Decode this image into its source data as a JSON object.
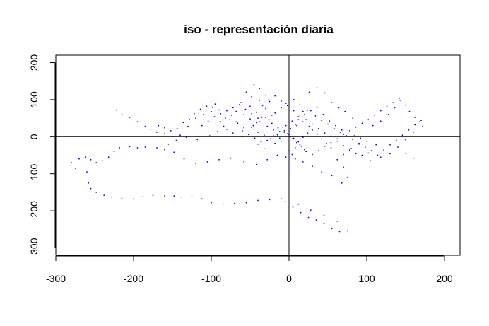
{
  "chart_data": {
    "type": "scatter",
    "title": "iso - representación diaria",
    "xlabel": "",
    "ylabel": "",
    "xlim": [
      -300,
      220
    ],
    "ylim": [
      -320,
      220
    ],
    "x_ticks": [
      -300,
      -200,
      -100,
      0,
      100,
      200
    ],
    "y_ticks": [
      -300,
      -200,
      -100,
      0,
      100,
      200
    ],
    "x_tick_labels": [
      "-300",
      "-200",
      "-100",
      "0",
      "100",
      "200"
    ],
    "y_tick_labels": [
      "-300",
      "-200",
      "-100",
      "0",
      "100",
      "200"
    ],
    "reference_lines": {
      "vertical_x": 0,
      "horizontal_y": 0
    },
    "grid": false,
    "point_color": "#0000ff",
    "series": [
      {
        "values": [
          [
            -280,
            -70
          ],
          [
            -275,
            -85
          ],
          [
            -270,
            -60
          ],
          [
            -262,
            -55
          ],
          [
            -255,
            -62
          ],
          [
            -248,
            -70
          ],
          [
            -240,
            -65
          ],
          [
            -232,
            -55
          ],
          [
            -225,
            -40
          ],
          [
            -218,
            -30
          ],
          [
            -260,
            -95
          ],
          [
            -258,
            -125
          ],
          [
            -255,
            -140
          ],
          [
            -248,
            -150
          ],
          [
            -238,
            -158
          ],
          [
            -228,
            -163
          ],
          [
            -215,
            -166
          ],
          [
            -200,
            -168
          ],
          [
            -188,
            -162
          ],
          [
            -175,
            -158
          ],
          [
            -160,
            -160
          ],
          [
            -148,
            -160
          ],
          [
            -138,
            -163
          ],
          [
            -125,
            -162
          ],
          [
            -112,
            -168
          ],
          [
            -100,
            -178
          ],
          [
            -85,
            -182
          ],
          [
            -70,
            -180
          ],
          [
            -55,
            -178
          ],
          [
            -40,
            -172
          ],
          [
            -25,
            -170
          ],
          [
            -10,
            -168
          ],
          [
            -5,
            -175
          ],
          [
            5,
            -190
          ],
          [
            15,
            -205
          ],
          [
            25,
            -218
          ],
          [
            35,
            -225
          ],
          [
            45,
            -235
          ],
          [
            55,
            -248
          ],
          [
            65,
            -256
          ],
          [
            75,
            -254
          ],
          [
            45,
            -212
          ],
          [
            62,
            -228
          ],
          [
            12,
            -182
          ],
          [
            28,
            -198
          ],
          [
            -205,
            -27
          ],
          [
            -195,
            -30
          ],
          [
            -185,
            -28
          ],
          [
            -170,
            -30
          ],
          [
            -160,
            -35
          ],
          [
            -222,
            72
          ],
          [
            -215,
            60
          ],
          [
            -205,
            52
          ],
          [
            -195,
            40
          ],
          [
            -185,
            28
          ],
          [
            -178,
            20
          ],
          [
            -170,
            12
          ],
          [
            -160,
            8
          ],
          [
            -150,
            0
          ],
          [
            -140,
            4
          ],
          [
            -130,
            28
          ],
          [
            -120,
            50
          ],
          [
            -110,
            60
          ],
          [
            -100,
            68
          ],
          [
            -95,
            88
          ],
          [
            -90,
            72
          ],
          [
            -88,
            40
          ],
          [
            -80,
            20
          ],
          [
            -72,
            10
          ],
          [
            -60,
            0
          ],
          [
            -55,
            120
          ],
          [
            -45,
            140
          ],
          [
            -38,
            130
          ],
          [
            -30,
            112
          ],
          [
            -25,
            95
          ],
          [
            -50,
            82
          ],
          [
            -58,
            60
          ],
          [
            -68,
            40
          ],
          [
            -42,
            38
          ],
          [
            -35,
            52
          ],
          [
            -28,
            28
          ],
          [
            -20,
            18
          ],
          [
            -15,
            5
          ],
          [
            -10,
            -12
          ],
          [
            -5,
            -25
          ],
          [
            0,
            -38
          ],
          [
            4,
            -48
          ],
          [
            8,
            -30
          ],
          [
            14,
            -22
          ],
          [
            20,
            -35
          ],
          [
            -48,
            25
          ],
          [
            -40,
            12
          ],
          [
            -32,
            4
          ],
          [
            -24,
            -6
          ],
          [
            -18,
            -18
          ],
          [
            -12,
            -4
          ],
          [
            -6,
            12
          ],
          [
            2,
            22
          ],
          [
            8,
            32
          ],
          [
            12,
            46
          ],
          [
            20,
            60
          ],
          [
            28,
            70
          ],
          [
            36,
            78
          ],
          [
            44,
            60
          ],
          [
            52,
            42
          ],
          [
            60,
            30
          ],
          [
            68,
            18
          ],
          [
            76,
            8
          ],
          [
            84,
            2
          ],
          [
            92,
            -4
          ],
          [
            26,
            120
          ],
          [
            36,
            132
          ],
          [
            46,
            118
          ],
          [
            55,
            92
          ],
          [
            64,
            78
          ],
          [
            72,
            68
          ],
          [
            82,
            50
          ],
          [
            95,
            40
          ],
          [
            108,
            30
          ],
          [
            118,
            42
          ],
          [
            128,
            60
          ],
          [
            136,
            78
          ],
          [
            143,
            98
          ],
          [
            150,
            85
          ],
          [
            155,
            68
          ],
          [
            162,
            52
          ],
          [
            168,
            40
          ],
          [
            172,
            28
          ],
          [
            160,
            12
          ],
          [
            150,
            -8
          ],
          [
            140,
            -28
          ],
          [
            130,
            -46
          ],
          [
            118,
            -55
          ],
          [
            105,
            -65
          ],
          [
            95,
            -58
          ],
          [
            160,
            -58
          ],
          [
            150,
            -45
          ],
          [
            112,
            -22
          ],
          [
            100,
            -12
          ],
          [
            90,
            -20
          ],
          [
            80,
            -32
          ],
          [
            70,
            -48
          ],
          [
            62,
            -62
          ],
          [
            70,
            -82
          ],
          [
            75,
            -110
          ],
          [
            68,
            -125
          ],
          [
            55,
            -105
          ],
          [
            42,
            -95
          ],
          [
            30,
            -80
          ],
          [
            18,
            -68
          ],
          [
            8,
            -60
          ],
          [
            -4,
            -55
          ],
          [
            -15,
            -50
          ],
          [
            -28,
            -62
          ],
          [
            -42,
            -75
          ],
          [
            -58,
            -68
          ],
          [
            -75,
            -58
          ],
          [
            -90,
            -62
          ],
          [
            -105,
            -68
          ],
          [
            -120,
            -72
          ],
          [
            -135,
            -60
          ],
          [
            -148,
            -42
          ],
          [
            -155,
            -20
          ],
          [
            -145,
            -10
          ],
          [
            -132,
            -2
          ],
          [
            -118,
            -8
          ],
          [
            -102,
            2
          ],
          [
            -92,
            14
          ],
          [
            -84,
            28
          ],
          [
            -76,
            46
          ],
          [
            -68,
            68
          ],
          [
            -62,
            92
          ],
          [
            -48,
            108
          ],
          [
            -38,
            98
          ],
          [
            -30,
            76
          ],
          [
            -22,
            58
          ],
          [
            -14,
            40
          ],
          [
            -8,
            26
          ],
          [
            -2,
            8
          ],
          [
            4,
            -6
          ],
          [
            10,
            -16
          ],
          [
            16,
            -26
          ],
          [
            22,
            -40
          ],
          [
            30,
            -48
          ],
          [
            38,
            -38
          ],
          [
            46,
            -26
          ],
          [
            54,
            -16
          ],
          [
            62,
            -6
          ],
          [
            70,
            6
          ],
          [
            78,
            16
          ],
          [
            86,
            26
          ],
          [
            94,
            36
          ],
          [
            102,
            46
          ],
          [
            110,
            58
          ],
          [
            118,
            70
          ],
          [
            126,
            82
          ],
          [
            134,
            92
          ],
          [
            142,
            104
          ],
          [
            -40,
            -20
          ],
          [
            -32,
            -32
          ],
          [
            -26,
            46
          ],
          [
            -18,
            64
          ],
          [
            -10,
            78
          ],
          [
            -4,
            90
          ],
          [
            6,
            100
          ],
          [
            14,
            86
          ],
          [
            24,
            72
          ],
          [
            34,
            56
          ],
          [
            42,
            44
          ],
          [
            50,
            34
          ],
          [
            58,
            22
          ],
          [
            66,
            12
          ],
          [
            74,
            2
          ],
          [
            82,
            -8
          ],
          [
            90,
            -18
          ],
          [
            98,
            -28
          ],
          [
            106,
            -38
          ],
          [
            114,
            -50
          ],
          [
            122,
            -36
          ],
          [
            130,
            -22
          ],
          [
            138,
            -10
          ],
          [
            146,
            4
          ],
          [
            154,
            18
          ],
          [
            162,
            32
          ],
          [
            170,
            44
          ],
          [
            -60,
            16
          ],
          [
            -52,
            6
          ],
          [
            -44,
            -4
          ],
          [
            -36,
            -14
          ],
          [
            -28,
            -10
          ],
          [
            -20,
            2
          ],
          [
            -12,
            14
          ],
          [
            -4,
            30
          ],
          [
            4,
            42
          ],
          [
            12,
            54
          ],
          [
            18,
            68
          ],
          [
            -82,
            50
          ],
          [
            -74,
            58
          ],
          [
            -66,
            36
          ],
          [
            -58,
            24
          ],
          [
            -50,
            48
          ],
          [
            -42,
            66
          ],
          [
            -34,
            84
          ],
          [
            -26,
            100
          ],
          [
            -18,
            110
          ],
          [
            -10,
            96
          ],
          [
            -2,
            84
          ],
          [
            6,
            70
          ],
          [
            14,
            58
          ],
          [
            22,
            46
          ],
          [
            30,
            34
          ],
          [
            38,
            22
          ],
          [
            46,
            10
          ],
          [
            54,
            0
          ],
          [
            62,
            -12
          ],
          [
            70,
            -24
          ],
          [
            78,
            -36
          ],
          [
            86,
            -46
          ],
          [
            94,
            -50
          ],
          [
            102,
            -44
          ],
          [
            -112,
            30
          ],
          [
            -104,
            42
          ],
          [
            -96,
            54
          ],
          [
            -88,
            62
          ],
          [
            -80,
            70
          ],
          [
            -72,
            78
          ],
          [
            -64,
            86
          ],
          [
            -56,
            74
          ],
          [
            -48,
            62
          ],
          [
            -40,
            50
          ],
          [
            -168,
            30
          ],
          [
            -160,
            24
          ],
          [
            -152,
            16
          ],
          [
            -144,
            22
          ],
          [
            -136,
            38
          ],
          [
            -128,
            46
          ],
          [
            -122,
            62
          ],
          [
            -114,
            74
          ],
          [
            -106,
            82
          ],
          [
            -98,
            78
          ],
          [
            0,
            6
          ],
          [
            6,
            -4
          ],
          [
            12,
            -14
          ],
          [
            18,
            -2
          ],
          [
            24,
            10
          ],
          [
            30,
            18
          ],
          [
            36,
            6
          ],
          [
            42,
            -6
          ],
          [
            48,
            -18
          ],
          [
            54,
            -30
          ],
          [
            -46,
            30
          ],
          [
            -38,
            40
          ],
          [
            -30,
            52
          ],
          [
            -22,
            36
          ],
          [
            -14,
            24
          ],
          [
            -6,
            16
          ],
          [
            2,
            0
          ],
          [
            10,
            30
          ],
          [
            18,
            40
          ],
          [
            26,
            28
          ]
        ]
      }
    ]
  }
}
